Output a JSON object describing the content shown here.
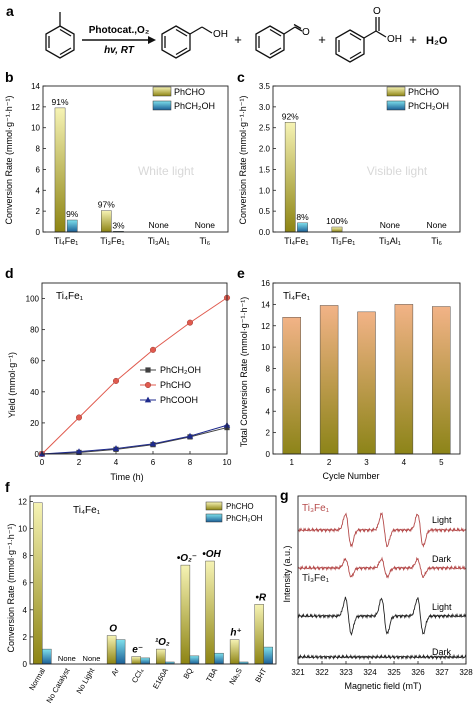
{
  "figure": {
    "scheme": {
      "panel": "a",
      "condition_top": "Photocat.,O₂",
      "condition_bottom": "hv, RT",
      "plus": "+",
      "product_oh": "OH",
      "product_o": "O",
      "acid_o": "O",
      "acid_oh": "OH",
      "water": "H₂O"
    },
    "colors": {
      "phcho_top": "#f6f3b4",
      "phcho_bottom": "#8d8413",
      "phch2oh_top": "#7fe0ec",
      "phch2oh_bottom": "#1b5f96",
      "cycle_top": "#f2b387",
      "cycle_bottom": "#8c8418",
      "epr_red": "#b54a4a",
      "epr_black": "#222222",
      "series_ch2oh": "#404040",
      "series_cho": "#e05a4e",
      "series_cooh": "#1e2a8c",
      "sample_blue": "#1f3c88"
    }
  },
  "chart_data": [
    {
      "panel": "b",
      "type": "bar",
      "ylabel": "Conversion Rate (mmol·g⁻¹·h⁻¹)",
      "watermark": "White light",
      "categories": [
        "Ti₄Fe₁",
        "Ti₃Fe₁",
        "Ti₃Al₁",
        "Ti₆"
      ],
      "series": [
        {
          "name": "PhCHO",
          "values": [
            11.9,
            2.05,
            0,
            0
          ],
          "labels": [
            "91%",
            "97%",
            "",
            ""
          ]
        },
        {
          "name": "PhCH₂OH",
          "values": [
            1.15,
            0.07,
            0,
            0
          ],
          "labels": [
            "9%",
            "3%",
            "",
            ""
          ]
        }
      ],
      "none_labels": [
        "",
        "",
        "None",
        "None"
      ],
      "ylim": [
        0,
        14
      ],
      "yticks": [
        "0",
        "2",
        "4",
        "6",
        "8",
        "10",
        "12",
        "14"
      ],
      "legend_position": "top-right"
    },
    {
      "panel": "c",
      "type": "bar",
      "ylabel": "Conversion Rate (mmol·g⁻¹·h⁻¹)",
      "watermark": "Visible light",
      "categories": [
        "Ti₄Fe₁",
        "Ti₃Fe₁",
        "Ti₃Al₁",
        "Ti₆"
      ],
      "series": [
        {
          "name": "PhCHO",
          "values": [
            2.63,
            0.12,
            0,
            0
          ],
          "labels": [
            "92%",
            "100%",
            "",
            ""
          ]
        },
        {
          "name": "PhCH₂OH",
          "values": [
            0.22,
            0,
            0,
            0
          ],
          "labels": [
            "8%",
            "",
            "",
            ""
          ]
        }
      ],
      "none_labels": [
        "",
        "",
        "None",
        "None"
      ],
      "ylim": [
        0,
        3.5
      ],
      "yticks": [
        "0.0",
        "0.5",
        "1.0",
        "1.5",
        "2.0",
        "2.5",
        "3.0",
        "3.5"
      ],
      "legend_position": "top-right"
    },
    {
      "panel": "d",
      "type": "line",
      "sample": "Ti₄Fe₁",
      "xlabel": "Time (h)",
      "ylabel": "Yield (mmol·g⁻¹)",
      "x": [
        0,
        2,
        4,
        6,
        8,
        10
      ],
      "series": [
        {
          "name": "PhCH₂OH",
          "marker": "square",
          "values": [
            0,
            1.0,
            3.0,
            6.0,
            11.0,
            17.0
          ]
        },
        {
          "name": "PhCHO",
          "marker": "circle",
          "values": [
            0,
            23.5,
            47.0,
            67.0,
            84.5,
            100.5
          ]
        },
        {
          "name": "PhCOOH",
          "marker": "triangle",
          "values": [
            0,
            1.5,
            3.5,
            6.5,
            11.5,
            18.5
          ]
        }
      ],
      "xlim": [
        0,
        10
      ],
      "ylim": [
        0,
        110
      ],
      "xticks": [
        "0",
        "2",
        "4",
        "6",
        "8",
        "10"
      ],
      "yticks": [
        "0",
        "20",
        "40",
        "60",
        "80",
        "100"
      ],
      "legend_position": "right"
    },
    {
      "panel": "e",
      "type": "bar",
      "sample": "Ti₄Fe₁",
      "xlabel": "Cycle Number",
      "ylabel": "Total Conversion Rate (mmol·g⁻¹·h⁻¹)",
      "categories": [
        "1",
        "2",
        "3",
        "4",
        "5"
      ],
      "values": [
        12.8,
        13.9,
        13.3,
        14.0,
        13.8
      ],
      "ylim": [
        0,
        16
      ],
      "yticks": [
        "0",
        "2",
        "4",
        "6",
        "8",
        "10",
        "12",
        "14",
        "16"
      ]
    },
    {
      "panel": "f",
      "type": "bar",
      "sample": "Ti₄Fe₁",
      "ylabel": "Conversion Rate (mmol·g⁻¹·h⁻¹)",
      "categories": [
        "Normal",
        "No Catalyst",
        "No Light",
        "Ar",
        "CCl₄",
        "E160A",
        "BQ",
        "TBA",
        "Na₂S",
        "BHT"
      ],
      "series": [
        {
          "name": "PhCHO",
          "values": [
            11.9,
            0,
            0,
            2.1,
            0.55,
            1.1,
            7.3,
            7.6,
            1.8,
            4.4
          ]
        },
        {
          "name": "PhCH₂OH",
          "values": [
            1.1,
            0,
            0,
            1.8,
            0.45,
            0.15,
            0.6,
            0.8,
            0.15,
            1.25
          ]
        }
      ],
      "none_labels": [
        "",
        "None",
        "None",
        "",
        "",
        "",
        "",
        "",
        "",
        ""
      ],
      "scavenger_labels": [
        "",
        "",
        "",
        "O",
        "e⁻",
        "¹O₂",
        "•O₂⁻",
        "•OH",
        "h⁺",
        "•R"
      ],
      "ylim": [
        0,
        12.4
      ],
      "yticks": [
        "0",
        "2",
        "4",
        "6",
        "8",
        "10",
        "12"
      ],
      "legend_position": "top-right"
    },
    {
      "panel": "g",
      "type": "line",
      "xlabel": "Magnetic field (mT)",
      "ylabel": "Intensity (a.u.)",
      "xlim": [
        321,
        328
      ],
      "xticks": [
        "321",
        "322",
        "323",
        "324",
        "325",
        "326",
        "327",
        "328"
      ],
      "line_centers": [
        323.1,
        324.6,
        326.1
      ],
      "traces": [
        {
          "sample": "Ti₃Fe₁",
          "condition": "Light",
          "amplitude": 1.0
        },
        {
          "sample": "",
          "condition": "Dark",
          "amplitude": 0.55
        },
        {
          "sample": "Ti₃Fe₁",
          "condition": "Light",
          "amplitude": 1.1
        },
        {
          "sample": "",
          "condition": "Dark",
          "amplitude": 0
        }
      ]
    }
  ]
}
